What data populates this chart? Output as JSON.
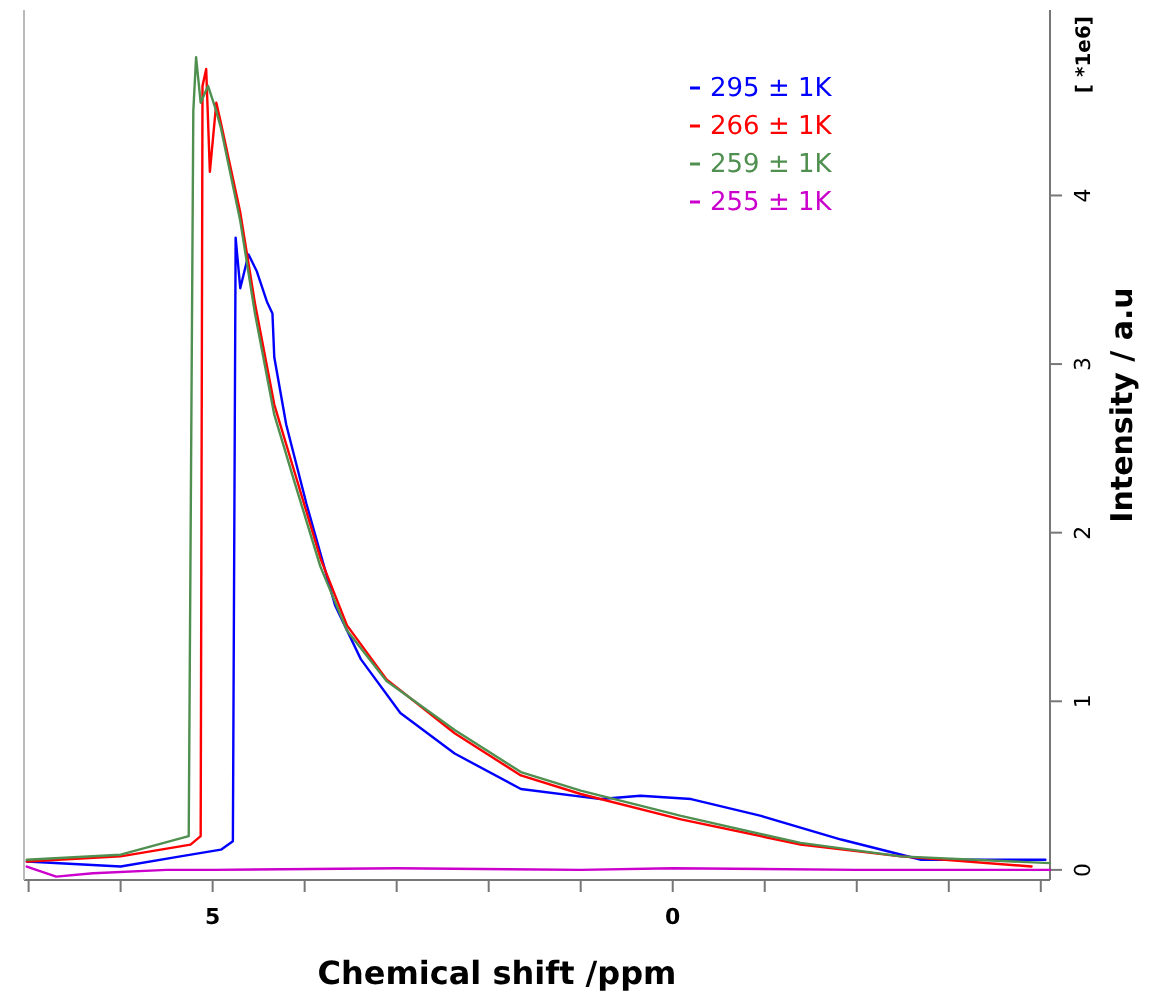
{
  "chart_data": {
    "type": "line",
    "xlabel": "Chemical shift /ppm",
    "ylabel": "Intensity / a.u",
    "annotations": [
      "[ *1e6]"
    ],
    "xlim": [
      7.05,
      -4.1
    ],
    "xticks": [
      {
        "value": 7,
        "label": null
      },
      {
        "value": 6,
        "label": null
      },
      5,
      {
        "value": 4,
        "label": null
      },
      {
        "value": 3,
        "label": null
      },
      {
        "value": 2,
        "label": null
      },
      {
        "value": 1,
        "label": null
      },
      0,
      {
        "value": -1,
        "label": null
      },
      {
        "value": -2,
        "label": null
      },
      {
        "value": -3,
        "label": null
      },
      {
        "value": -4,
        "label": null
      }
    ],
    "ylim": [
      -0.06,
      5.1
    ],
    "yticks": [
      0,
      1,
      2,
      3,
      4
    ],
    "grid": false,
    "legend": "top right",
    "series": [
      {
        "name": "295 ± 1K",
        "color": "#0000ff",
        "x": [
          7.02,
          6.0,
          5.35,
          4.91,
          4.78,
          4.75,
          4.7,
          4.61,
          4.52,
          4.41,
          4.35,
          4.33,
          4.2,
          3.98,
          3.67,
          3.39,
          2.96,
          2.37,
          1.65,
          0.78,
          0.35,
          -0.2,
          -0.96,
          -1.83,
          -2.7,
          -4.05
        ],
        "values": [
          0.05,
          0.02,
          0.08,
          0.12,
          0.17,
          3.75,
          3.45,
          3.65,
          3.55,
          3.37,
          3.3,
          3.04,
          2.64,
          2.17,
          1.57,
          1.25,
          0.93,
          0.69,
          0.48,
          0.42,
          0.44,
          0.42,
          0.32,
          0.18,
          0.06,
          0.06
        ]
      },
      {
        "name": "266 ± 1K",
        "color": "#ff0000",
        "x": [
          7.02,
          6.0,
          5.24,
          5.13,
          5.11,
          5.07,
          5.03,
          4.96,
          4.91,
          4.7,
          4.54,
          4.33,
          4.11,
          3.83,
          3.54,
          3.11,
          2.37,
          1.65,
          1.0,
          -0.09,
          -1.39,
          -2.48,
          -3.9
        ],
        "values": [
          0.05,
          0.08,
          0.15,
          0.2,
          4.65,
          4.75,
          4.14,
          4.55,
          4.43,
          3.9,
          3.36,
          2.76,
          2.36,
          1.85,
          1.45,
          1.13,
          0.81,
          0.56,
          0.45,
          0.3,
          0.15,
          0.08,
          0.02
        ]
      },
      {
        "name": "259 ± 1K",
        "color": "#4f8f4f",
        "x": [
          7.02,
          6.0,
          5.26,
          5.21,
          5.18,
          5.13,
          5.05,
          4.96,
          4.91,
          4.7,
          4.54,
          4.33,
          4.11,
          3.83,
          3.54,
          3.11,
          2.37,
          1.65,
          1.0,
          -0.09,
          -1.39,
          -2.48,
          -4.1
        ],
        "values": [
          0.06,
          0.09,
          0.2,
          4.5,
          4.82,
          4.55,
          4.65,
          4.5,
          4.4,
          3.85,
          3.3,
          2.7,
          2.3,
          1.8,
          1.42,
          1.12,
          0.83,
          0.58,
          0.47,
          0.32,
          0.16,
          0.08,
          0.04
        ]
      },
      {
        "name": "255 ± 1K",
        "color": "#cc00cc",
        "x": [
          7.02,
          6.7,
          6.3,
          5.5,
          5.0,
          3.0,
          1.0,
          0.0,
          -2.0,
          -4.1
        ],
        "values": [
          0.02,
          -0.04,
          -0.02,
          0.0,
          0.0,
          0.01,
          0.0,
          0.01,
          0.0,
          0.0
        ]
      }
    ]
  }
}
